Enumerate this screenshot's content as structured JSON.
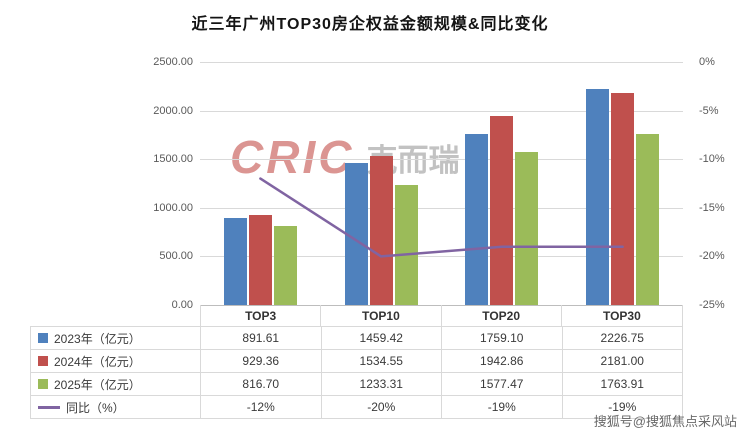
{
  "title": "近三年广州TOP30房企权益金额规模&同比变化",
  "watermark": {
    "cric_text": "CRIC",
    "cric_suffix": "克而瑞",
    "sohu": "搜狐号@搜狐焦点采风站"
  },
  "chart_data": {
    "type": "bar",
    "subtype": "bar+line combo with data table",
    "title": "近三年广州TOP30房企权益金额规模&同比变化",
    "categories": [
      "TOP3",
      "TOP10",
      "TOP20",
      "TOP30"
    ],
    "series": [
      {
        "name": "2023年（亿元）",
        "type": "bar",
        "color": "#4F81BD",
        "values": [
          891.61,
          1459.42,
          1759.1,
          2226.75
        ]
      },
      {
        "name": "2024年（亿元）",
        "type": "bar",
        "color": "#C0504D",
        "values": [
          929.36,
          1534.55,
          1942.86,
          2181.0
        ]
      },
      {
        "name": "2025年（亿元）",
        "type": "bar",
        "color": "#9BBB59",
        "values": [
          816.7,
          1233.31,
          1577.47,
          1763.91
        ]
      },
      {
        "name": "同比（%）",
        "type": "line",
        "color": "#8064A2",
        "values": [
          -12,
          -20,
          -19,
          -19
        ]
      }
    ],
    "table_values": [
      [
        "891.61",
        "1459.42",
        "1759.10",
        "2226.75"
      ],
      [
        "929.36",
        "1534.55",
        "1942.86",
        "2181.00"
      ],
      [
        "816.70",
        "1233.31",
        "1577.47",
        "1763.91"
      ],
      [
        "-12%",
        "-20%",
        "-19%",
        "-19%"
      ]
    ],
    "left_axis": {
      "min": 0,
      "max": 2500,
      "step": 500,
      "labels": [
        "2500.00",
        "2000.00",
        "1500.00",
        "1000.00",
        "500.00",
        "0.00"
      ]
    },
    "right_axis": {
      "min": -25,
      "max": 0,
      "step": 5,
      "labels": [
        "0%",
        "-5%",
        "-10%",
        "-15%",
        "-20%",
        "-25%"
      ]
    },
    "grid": true,
    "legend_position": "table-left"
  }
}
